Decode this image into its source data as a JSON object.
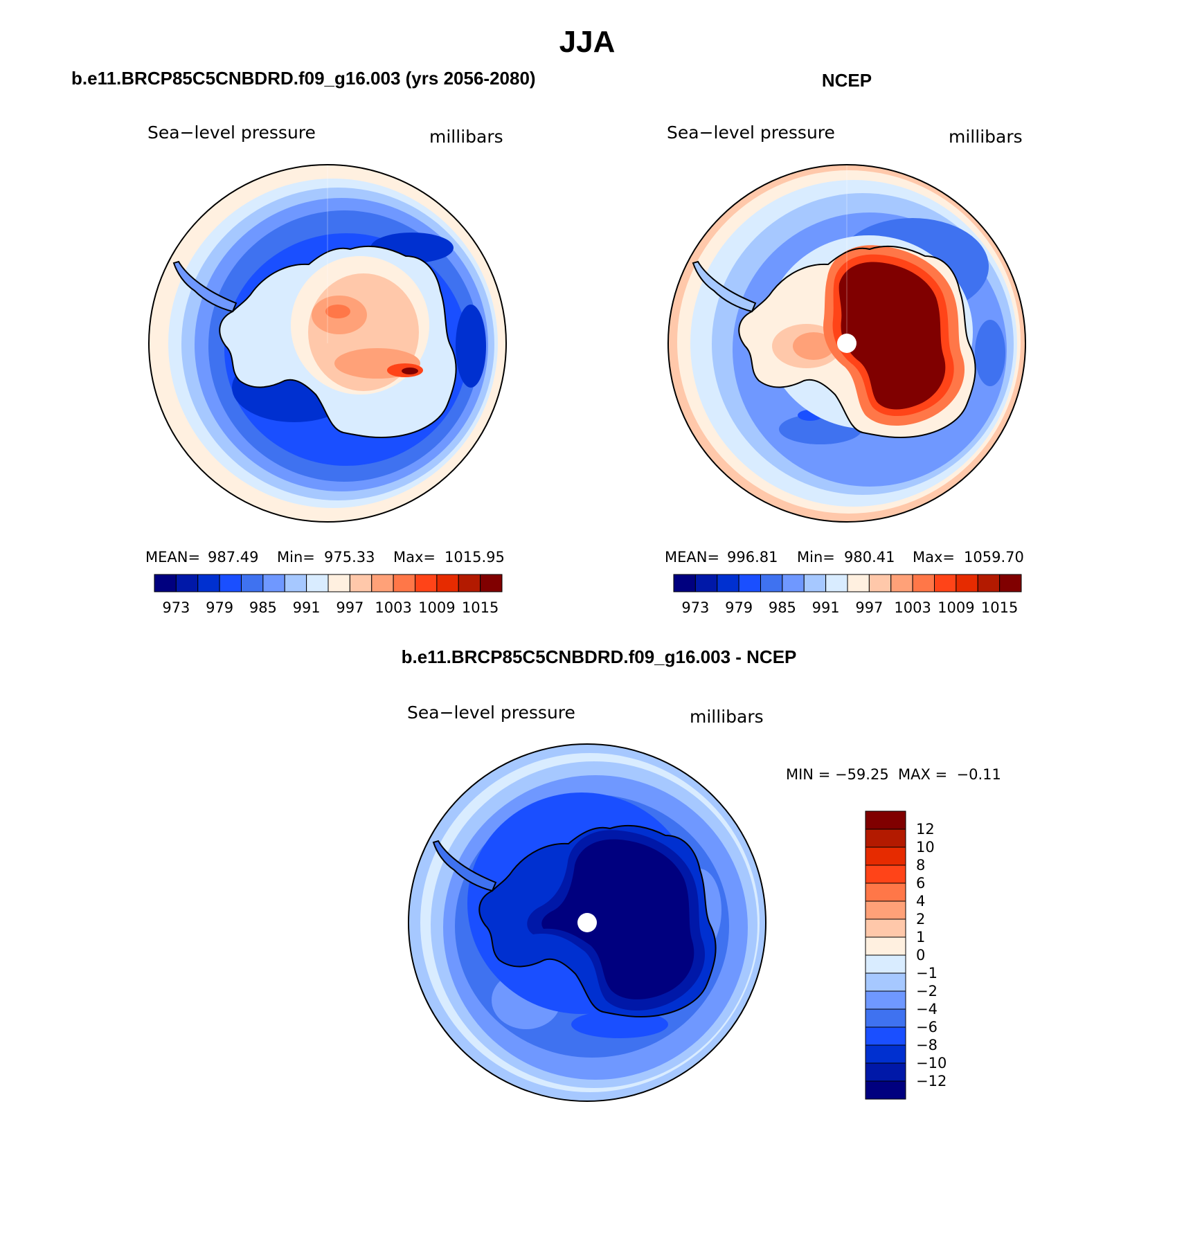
{
  "figure_title": "JJA",
  "colors": {
    "seq_palette": [
      "#00007f",
      "#0018a8",
      "#0030d0",
      "#1a4fff",
      "#3f72f0",
      "#6f98ff",
      "#a6c8ff",
      "#d9ecff",
      "#fff0e0",
      "#ffc8aa",
      "#ffa178",
      "#ff7748",
      "#ff4418",
      "#e62b00",
      "#b31a00",
      "#800000"
    ],
    "diff_palette": [
      "#00007f",
      "#0018a8",
      "#0030d0",
      "#1a4fff",
      "#3f72f0",
      "#6f98ff",
      "#a6c8ff",
      "#d9ecff",
      "#fff0e0",
      "#ffc8aa",
      "#ffa178",
      "#ff7748",
      "#ff4418",
      "#e62b00",
      "#b31a00",
      "#800000"
    ],
    "coast": "#000000",
    "pole_dot": "#ffffff"
  },
  "maps": [
    {
      "title": "b.e11.BRCP85C5CNBDRD.f09_g16.003 (yrs 2056-2080)",
      "left_label": "Sea−level pressure",
      "right_label": "millibars",
      "stats": {
        "mean_label": "MEAN=",
        "mean": "987.49",
        "min_label": "Min=",
        "min": "975.33",
        "max_label": "Max=",
        "max": "1015.95"
      },
      "colorbar_ticks": [
        "973",
        "979",
        "985",
        "991",
        "997",
        "1003",
        "1009",
        "1015"
      ]
    },
    {
      "title": "NCEP",
      "left_label": "Sea−level pressure",
      "right_label": "millibars",
      "stats": {
        "mean_label": "MEAN=",
        "mean": "996.81",
        "min_label": "Min=",
        "min": "980.41",
        "max_label": "Max=",
        "max": "1059.70"
      },
      "colorbar_ticks": [
        "973",
        "979",
        "985",
        "991",
        "997",
        "1003",
        "1009",
        "1015"
      ]
    },
    {
      "title": "b.e11.BRCP85C5CNBDRD.f09_g16.003 - NCEP",
      "left_label": "Sea−level pressure",
      "right_label": "millibars",
      "range_text": "MIN = −59.25  MAX =  −0.11",
      "colorbar_ticks": [
        "12",
        "10",
        "8",
        "6",
        "4",
        "2",
        "1",
        "0",
        "−1",
        "−2",
        "−4",
        "−6",
        "−8",
        "−10",
        "−12"
      ]
    }
  ]
}
